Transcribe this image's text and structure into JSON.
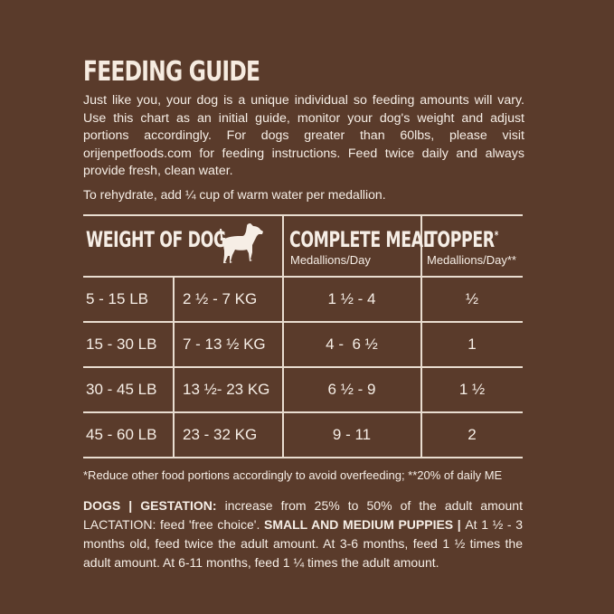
{
  "title": "FEEDING GUIDE",
  "intro": "Just like you, your dog is a unique individual so feeding amounts will vary. Use this chart as an initial guide, monitor your dog's weight and adjust portions accordingly. For dogs greater than 60lbs, please visit orijenpetfoods.com for feeding instructions. Feed twice daily and always provide fresh, clean water.",
  "rehydrate": "To rehydrate, add ¼ cup of warm water per medallion.",
  "table": {
    "headers": {
      "weight": "WEIGHT OF DOG",
      "meal": "COMPLETE MEAL",
      "meal_sub": "Medallions/Day",
      "topper": "TOPPER",
      "topper_mark": "*",
      "topper_sub": "Medallions/Day**"
    },
    "rows": [
      {
        "lb": "5 - 15 LB",
        "kg": "2 ½ - 7 KG",
        "meal": "1 ½ - 4",
        "topper": "½"
      },
      {
        "lb": "15 - 30 LB",
        "kg": "7 - 13 ½ KG",
        "meal": "4 -  6 ½",
        "topper": "1"
      },
      {
        "lb": "30 - 45 LB",
        "kg": "13 ½- 23 KG",
        "meal": "6 ½ - 9",
        "topper": "1 ½"
      },
      {
        "lb": "45 - 60 LB",
        "kg": "23 - 32 KG",
        "meal": "9 - 11",
        "topper": "2"
      }
    ]
  },
  "footnote": "*Reduce other food portions accordingly to avoid overfeeding; **20% of daily ME",
  "notes": {
    "dogs_label": "DOGS | ",
    "gestation_label": "GESTATION:",
    "gestation_text": " increase from 25% to 50% of the adult amount ",
    "lactation_text": "LACTATION: feed 'free choice'. ",
    "puppies_label": "SMALL AND MEDIUM PUPPIES | ",
    "puppies_text": "At 1 ½ - 3 months old, feed twice the adult amount. At 3-6 months, feed 1 ½ times the adult amount. At 6-11 months, feed 1 ¼ times the adult amount."
  },
  "colors": {
    "background": "#5a3b2b",
    "text": "#f6eee6"
  }
}
